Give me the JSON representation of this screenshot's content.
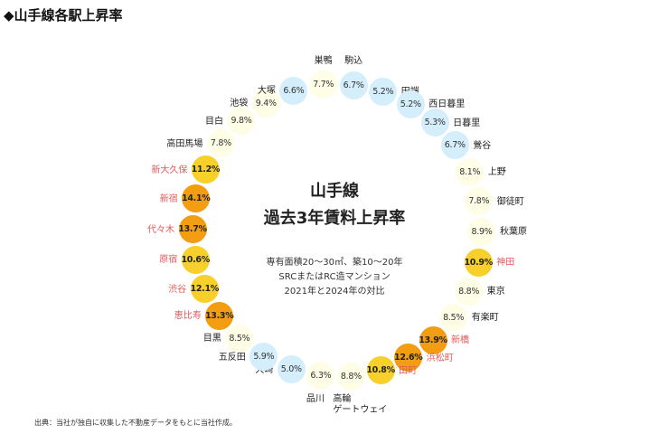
{
  "title": "◆山手線各駅上昇率",
  "center": {
    "line1": "山手線",
    "line2": "過去3年賃料上昇率",
    "cond1": "専有面積20～30㎡、築10～20年",
    "cond2": "SRCまたはRC造マンション",
    "cond3": "2021年と2024年の対比"
  },
  "source": "出典：当社が独自に収集した不動産データをもとに当社作成。",
  "colors": {
    "low": "#d5eefb",
    "mid": "#fefde6",
    "high": "#f7d12a",
    "top": "#f29d12",
    "highlight_label": "#e05a5a"
  },
  "stations": [
    {
      "name": "駒込",
      "value": "6.7%",
      "level": "low",
      "highlight": false
    },
    {
      "name": "田端",
      "value": "5.2%",
      "level": "low",
      "highlight": false
    },
    {
      "name": "西日暮里",
      "value": "5.2%",
      "level": "low",
      "highlight": false
    },
    {
      "name": "日暮里",
      "value": "5.3%",
      "level": "low",
      "highlight": false
    },
    {
      "name": "鶯谷",
      "value": "6.7%",
      "level": "low",
      "highlight": false
    },
    {
      "name": "上野",
      "value": "8.1%",
      "level": "mid",
      "highlight": false
    },
    {
      "name": "御徒町",
      "value": "7.8%",
      "level": "mid",
      "highlight": false
    },
    {
      "name": "秋葉原",
      "value": "8.9%",
      "level": "mid",
      "highlight": false
    },
    {
      "name": "神田",
      "value": "10.9%",
      "level": "high",
      "highlight": true
    },
    {
      "name": "東京",
      "value": "8.8%",
      "level": "mid",
      "highlight": false
    },
    {
      "name": "有楽町",
      "value": "8.5%",
      "level": "mid",
      "highlight": false
    },
    {
      "name": "新橋",
      "value": "13.9%",
      "level": "top",
      "highlight": true
    },
    {
      "name": "浜松町",
      "value": "12.6%",
      "level": "top",
      "highlight": true
    },
    {
      "name": "田町",
      "value": "10.8%",
      "level": "high",
      "highlight": true
    },
    {
      "name": "高輪\nゲートウェイ",
      "value": "8.8%",
      "level": "mid",
      "highlight": false
    },
    {
      "name": "品川",
      "value": "6.3%",
      "level": "mid",
      "highlight": false
    },
    {
      "name": "大崎",
      "value": "5.0%",
      "level": "low",
      "highlight": false
    },
    {
      "name": "五反田",
      "value": "5.9%",
      "level": "low",
      "highlight": false
    },
    {
      "name": "目黒",
      "value": "8.5%",
      "level": "mid",
      "highlight": false
    },
    {
      "name": "恵比寿",
      "value": "13.3%",
      "level": "top",
      "highlight": true
    },
    {
      "name": "渋谷",
      "value": "12.1%",
      "level": "high",
      "highlight": true
    },
    {
      "name": "原宿",
      "value": "10.6%",
      "level": "high",
      "highlight": true
    },
    {
      "name": "代々木",
      "value": "13.7%",
      "level": "top",
      "highlight": true
    },
    {
      "name": "新宿",
      "value": "14.1%",
      "level": "top",
      "highlight": true
    },
    {
      "name": "新大久保",
      "value": "11.2%",
      "level": "high",
      "highlight": true
    },
    {
      "name": "高田馬場",
      "value": "7.8%",
      "level": "mid",
      "highlight": false
    },
    {
      "name": "目白",
      "value": "9.8%",
      "level": "mid",
      "highlight": false
    },
    {
      "name": "池袋",
      "value": "9.4%",
      "level": "mid",
      "highlight": false
    },
    {
      "name": "大塚",
      "value": "6.6%",
      "level": "low",
      "highlight": false
    },
    {
      "name": "巣鴨",
      "value": "7.7%",
      "level": "mid",
      "highlight": false
    }
  ]
}
